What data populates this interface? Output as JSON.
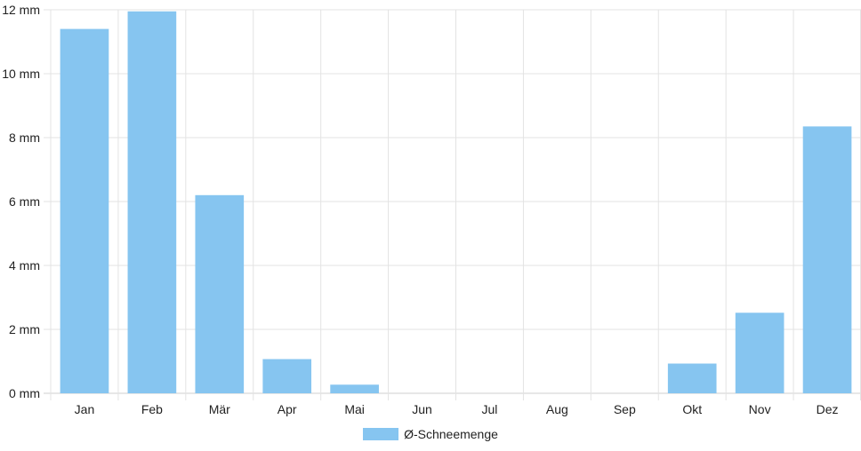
{
  "chart_data": {
    "type": "bar",
    "categories": [
      "Jan",
      "Feb",
      "Mär",
      "Apr",
      "Mai",
      "Jun",
      "Jul",
      "Aug",
      "Sep",
      "Okt",
      "Nov",
      "Dez"
    ],
    "series": [
      {
        "name": "Ø-Schneemenge",
        "values": [
          11.4,
          11.95,
          6.2,
          1.07,
          0.27,
          0,
          0,
          0,
          0,
          0.93,
          2.52,
          8.35
        ],
        "color": "#86C5F0"
      }
    ],
    "unit": "mm",
    "y_ticks": [
      "0 mm",
      "2 mm",
      "4 mm",
      "6 mm",
      "8 mm",
      "10 mm",
      "12 mm"
    ],
    "ylim": [
      0,
      12
    ],
    "grid": true,
    "legend_position": "bottom"
  }
}
